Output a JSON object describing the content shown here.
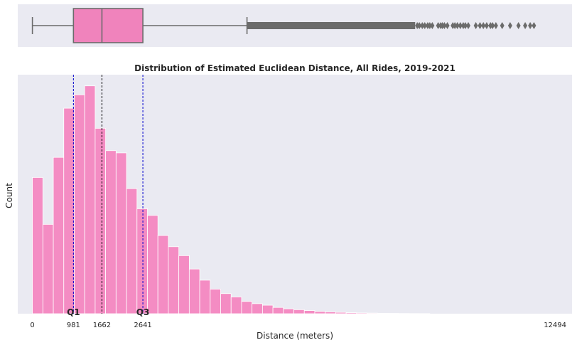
{
  "chart_data": [
    {
      "type": "box",
      "quartiles": {
        "min": 0,
        "q1": 981,
        "median": 1662,
        "q3": 2641,
        "upper_whisker": 5130,
        "max_outlier": 12494
      },
      "box_color": "#f083bc",
      "line_color": "#6b6b6b",
      "background": "#eaeaf2",
      "xlim": [
        -350,
        12900
      ]
    },
    {
      "type": "bar",
      "title": "Distribution of Estimated Euclidean Distance, All Rides, 2019-2021",
      "xlabel": "Distance (meters)",
      "ylabel": "Count",
      "xticks": [
        0,
        981,
        1662,
        2641,
        12494
      ],
      "xlim": [
        -350,
        12900
      ],
      "ylim": [
        0,
        107
      ],
      "grid": false,
      "bin_width": 250,
      "bin_start": 0,
      "values": [
        61,
        40,
        70,
        92,
        98,
        102,
        83,
        73,
        72,
        56,
        47,
        44,
        35,
        30,
        26,
        20,
        15,
        11,
        9,
        7.5,
        5.5,
        4.5,
        3.8,
        2.8,
        2.2,
        1.8,
        1.4,
        1.0,
        0.8,
        0.6,
        0.45,
        0.35,
        0.28,
        0.2,
        0.15,
        0.1,
        0.07,
        0.05
      ],
      "bar_color": "#f48cc3",
      "background": "#eaeaf2",
      "markers": [
        {
          "label": "Q1",
          "x": 981,
          "color": "#0000cd"
        },
        {
          "label": "",
          "x": 1662,
          "color": "#000000"
        },
        {
          "label": "Q3",
          "x": 2641,
          "color": "#0000cd"
        }
      ]
    }
  ]
}
